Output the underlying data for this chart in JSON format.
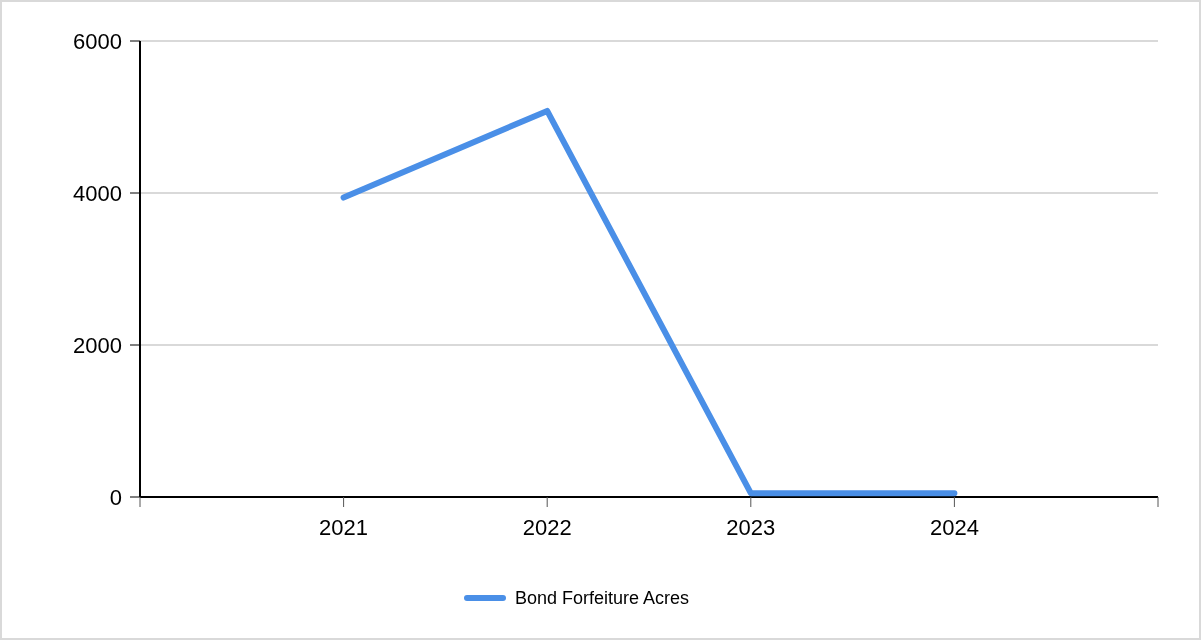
{
  "chart_data": {
    "type": "line",
    "categories": [
      "2021",
      "2022",
      "2023",
      "2024"
    ],
    "series": [
      {
        "name": "Bond Forfeiture Acres",
        "color": "#4a8fe7",
        "values": [
          3940,
          5080,
          50,
          50
        ]
      }
    ],
    "ylim": [
      0,
      6000
    ],
    "yticks": [
      0,
      2000,
      4000,
      6000
    ],
    "grid": "y",
    "legend": "bottom",
    "marker": "none",
    "line_style": "solid"
  }
}
